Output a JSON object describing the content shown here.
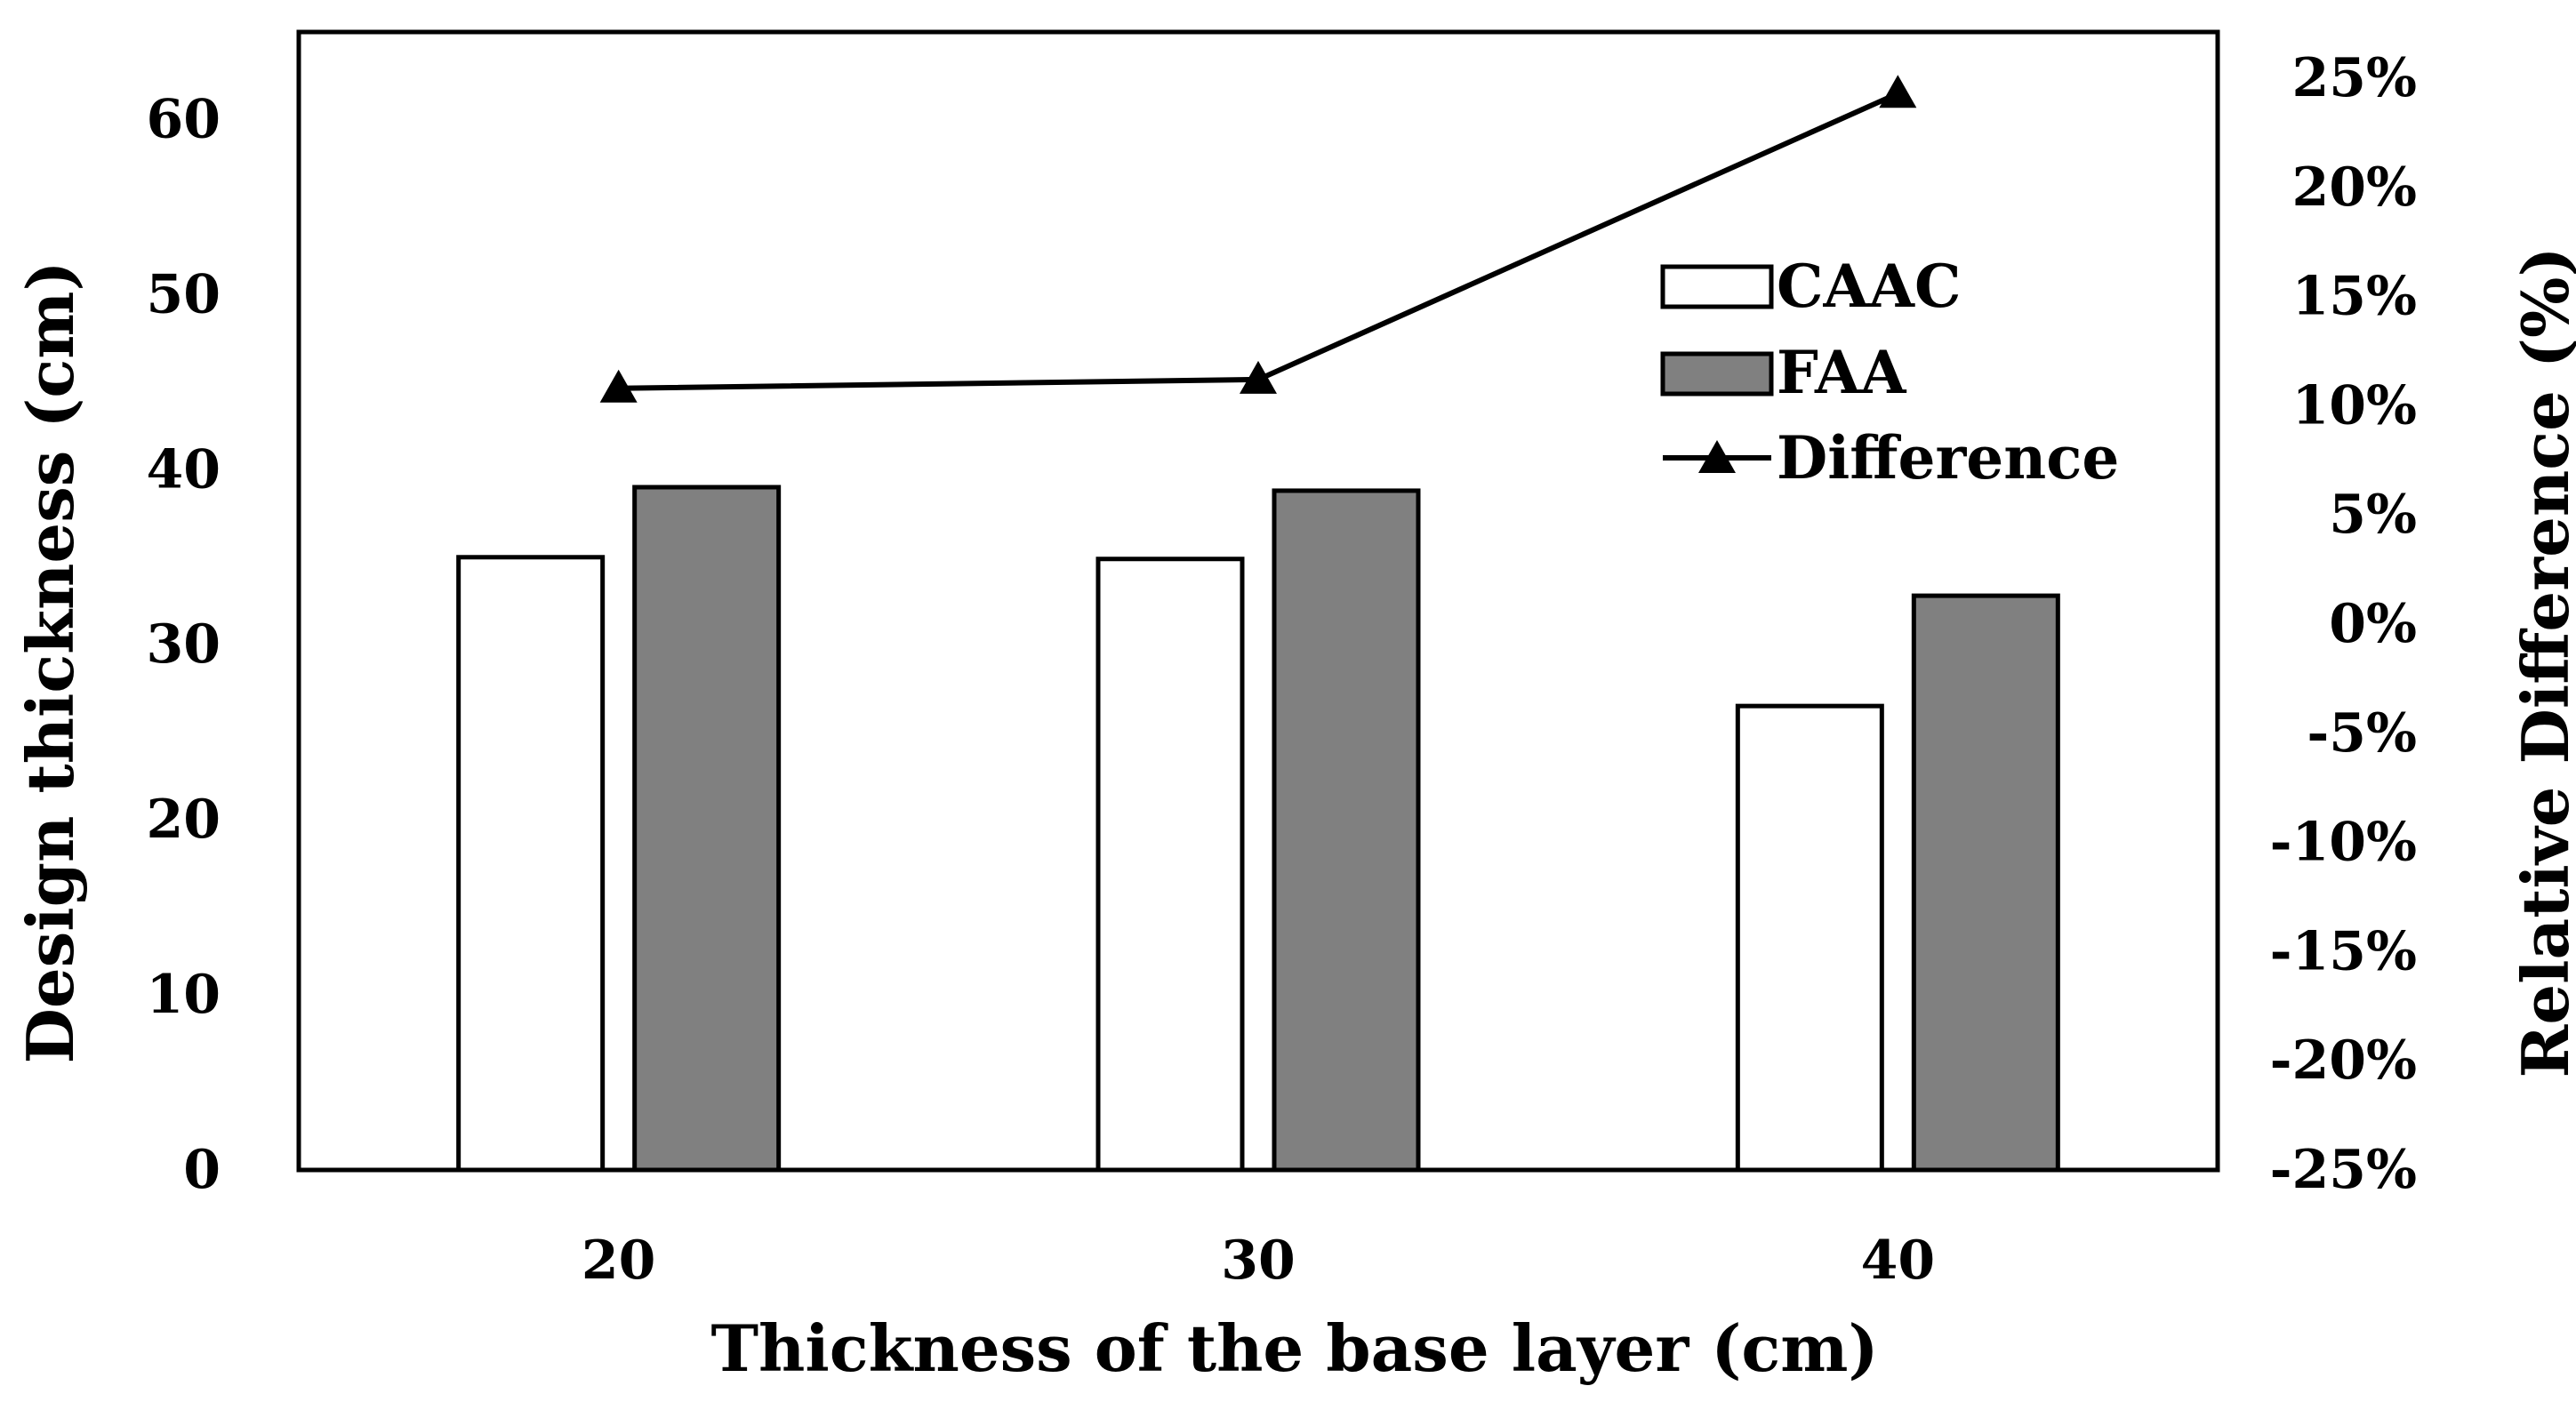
{
  "chart_data": {
    "type": "bar",
    "title": "",
    "xlabel": "Thickness of the base layer (cm)",
    "ylabel": "Design thickness (cm)",
    "y2label": "Relative Difference (%)",
    "categories": [
      "20",
      "30",
      "40"
    ],
    "ylim": [
      0,
      65
    ],
    "yticks": [
      0,
      10,
      20,
      30,
      40,
      50,
      60
    ],
    "y2lim": [
      -25,
      25
    ],
    "y2ticks": [
      "-25%",
      "-20%",
      "-15%",
      "-10%",
      "-5%",
      "0%",
      "5%",
      "10%",
      "15%",
      "20%",
      "25%"
    ],
    "y2tick_values": [
      -25,
      -20,
      -15,
      -10,
      -5,
      0,
      5,
      10,
      15,
      20,
      25
    ],
    "grid": false,
    "legend_position": "top-right",
    "series": [
      {
        "name": "CAAC",
        "kind": "bar",
        "axis": "left",
        "color": "#ffffff",
        "values": [
          35.0,
          34.9,
          26.5
        ]
      },
      {
        "name": "FAA",
        "kind": "bar",
        "axis": "left",
        "color": "#808080",
        "values": [
          39.0,
          38.8,
          32.8
        ]
      },
      {
        "name": "Difference",
        "kind": "line",
        "axis": "right",
        "marker": "triangle",
        "color": "#000000",
        "values": [
          10.8,
          11.2,
          24.3
        ]
      }
    ]
  }
}
